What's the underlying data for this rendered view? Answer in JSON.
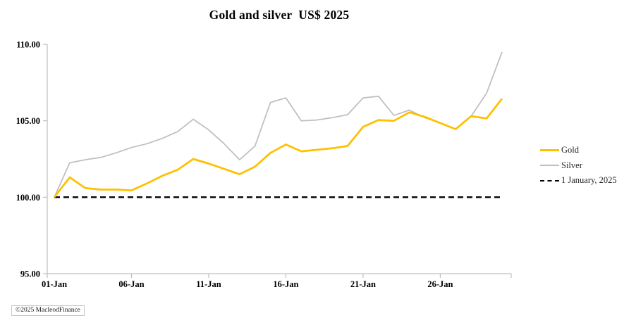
{
  "title": "Gold and silver  US$ 2025",
  "copyright": "©2025 MacleodFinance",
  "legend": [
    {
      "label": "Gold",
      "color": "#FFC000",
      "swatch": "solid-thick"
    },
    {
      "label": "Silver",
      "color": "#BFBFBF",
      "swatch": "solid-thin"
    },
    {
      "label": "1 January, 2025",
      "color": "#000000",
      "swatch": "dashed"
    }
  ],
  "colors": {
    "gold": "#FFC000",
    "silver": "#BFBFBF",
    "baseline": "#000000",
    "axis": "#BFBFBF"
  },
  "chart_data": {
    "type": "line",
    "title": "Gold and silver  US$ 2025",
    "xlabel": "",
    "ylabel": "",
    "ylim": [
      95,
      110
    ],
    "y_ticks": [
      "95.00",
      "100.00",
      "105.00",
      "110.00"
    ],
    "y_tick_values": [
      95,
      100,
      105,
      110
    ],
    "x_ticks": [
      {
        "day": 1,
        "label": "01-Jan"
      },
      {
        "day": 6,
        "label": "06-Jan"
      },
      {
        "day": 11,
        "label": "11-Jan"
      },
      {
        "day": 16,
        "label": "16-Jan"
      },
      {
        "day": 21,
        "label": "21-Jan"
      },
      {
        "day": 26,
        "label": "26-Jan"
      }
    ],
    "n_points": 30,
    "x_range_days": [
      1,
      30
    ],
    "grid": false,
    "legend_position": "right",
    "series": [
      {
        "name": "Gold",
        "color": "#FFC000",
        "stroke_width": 2.75,
        "dash": null,
        "values": [
          100.0,
          101.3,
          100.6,
          100.5,
          100.5,
          100.45,
          100.9,
          101.4,
          101.8,
          102.5,
          102.2,
          101.85,
          101.5,
          102.0,
          102.9,
          103.45,
          103.0,
          103.1,
          103.2,
          103.35,
          104.6,
          105.05,
          105.0,
          105.55,
          105.25,
          104.85,
          104.45,
          105.3,
          105.15,
          106.45
        ]
      },
      {
        "name": "Silver",
        "color": "#BFBFBF",
        "stroke_width": 1.75,
        "dash": null,
        "values": [
          100.0,
          102.25,
          102.45,
          102.6,
          102.9,
          103.25,
          103.5,
          103.85,
          104.3,
          105.1,
          104.4,
          103.5,
          102.45,
          103.35,
          106.2,
          106.5,
          105.0,
          105.05,
          105.2,
          105.4,
          106.5,
          106.6,
          105.35,
          105.7,
          105.2,
          104.85,
          104.45,
          105.3,
          106.8,
          109.5
        ]
      },
      {
        "name": "1 January, 2025",
        "color": "#000000",
        "stroke_width": 2.3,
        "dash": "8 5",
        "constant": 100
      }
    ]
  }
}
